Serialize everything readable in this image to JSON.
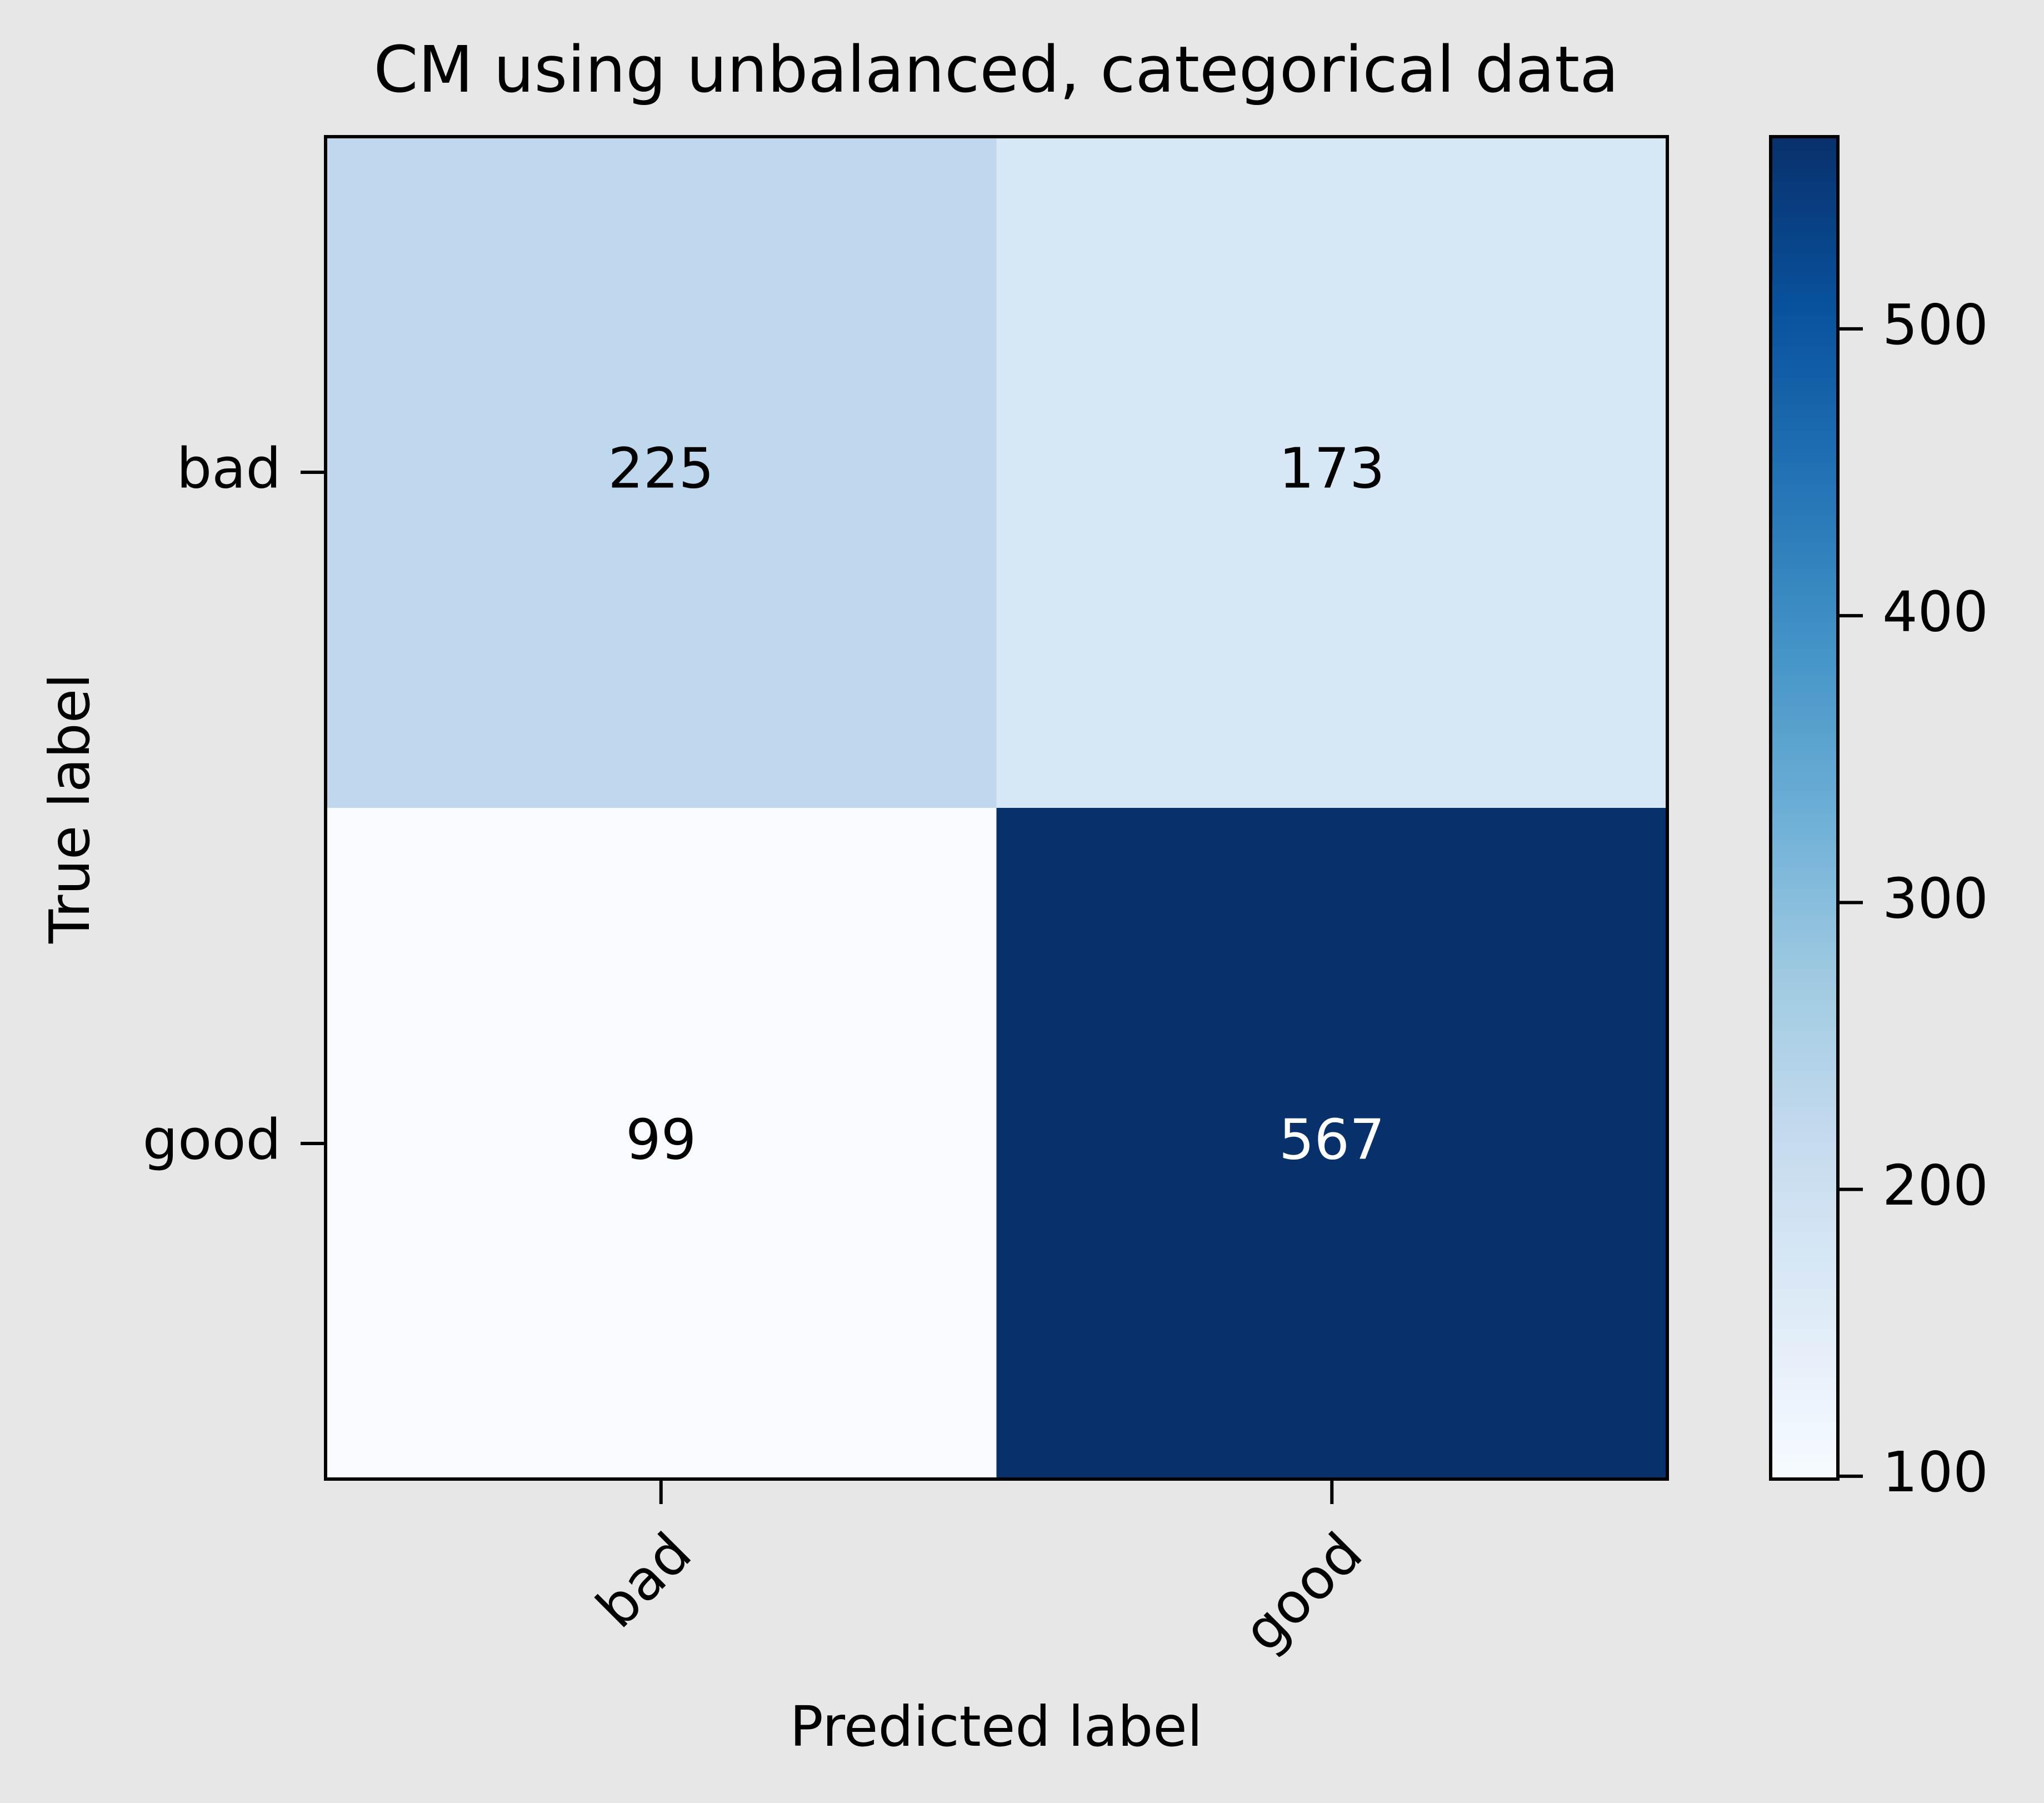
{
  "chart_data": {
    "type": "heatmap",
    "title": "CM using unbalanced, categorical data",
    "xlabel": "Predicted label",
    "ylabel": "True label",
    "x_categories": [
      "bad",
      "good"
    ],
    "y_categories": [
      "bad",
      "good"
    ],
    "values": [
      [
        225,
        173
      ],
      [
        99,
        567
      ]
    ],
    "colorbar": {
      "colormap": "Blues",
      "range": [
        99,
        567
      ],
      "ticks": [
        100,
        200,
        300,
        400,
        500
      ],
      "tick_labels": [
        "100",
        "200",
        "300",
        "400",
        "500"
      ]
    },
    "x_tick_rotation": "45 degrees",
    "grid": false,
    "legend": "none"
  }
}
